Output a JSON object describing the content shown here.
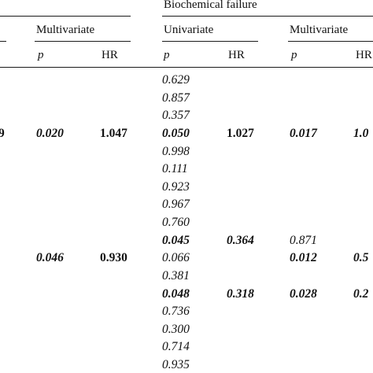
{
  "table": {
    "group_header": "Biochemical failure",
    "subheaders": {
      "left_multivariate": "Multivariate",
      "univariate": "Univariate",
      "right_multivariate": "Multivariate"
    },
    "columns": {
      "left_p": "p",
      "left_hr": "HR",
      "uni_p": "p",
      "uni_hr": "HR",
      "right_p": "p",
      "right_hr": "HR"
    },
    "cells": {
      "left_edge_r1": "9",
      "left_p_r1": "0.020",
      "left_hr_r1": "1.047",
      "left_p_r2": "0.046",
      "left_hr_r2": "0.930",
      "uni_p": [
        "0.629",
        "0.857",
        "0.357",
        "0.050",
        "0.998",
        "0.111",
        "0.923",
        "0.967",
        "0.760",
        "0.045",
        "0.066",
        "0.381",
        "0.048",
        "0.736",
        "0.300",
        "0.714",
        "0.935"
      ],
      "uni_hr_a": "1.027",
      "uni_hr_b": "0.364",
      "uni_hr_c": "0.318",
      "right_p_a": "0.017",
      "right_p_b": "0.871",
      "right_p_c": "0.012",
      "right_p_d": "0.028",
      "right_hr_a": "1.0",
      "right_hr_b": "0.5",
      "right_hr_c": "0.2"
    }
  }
}
